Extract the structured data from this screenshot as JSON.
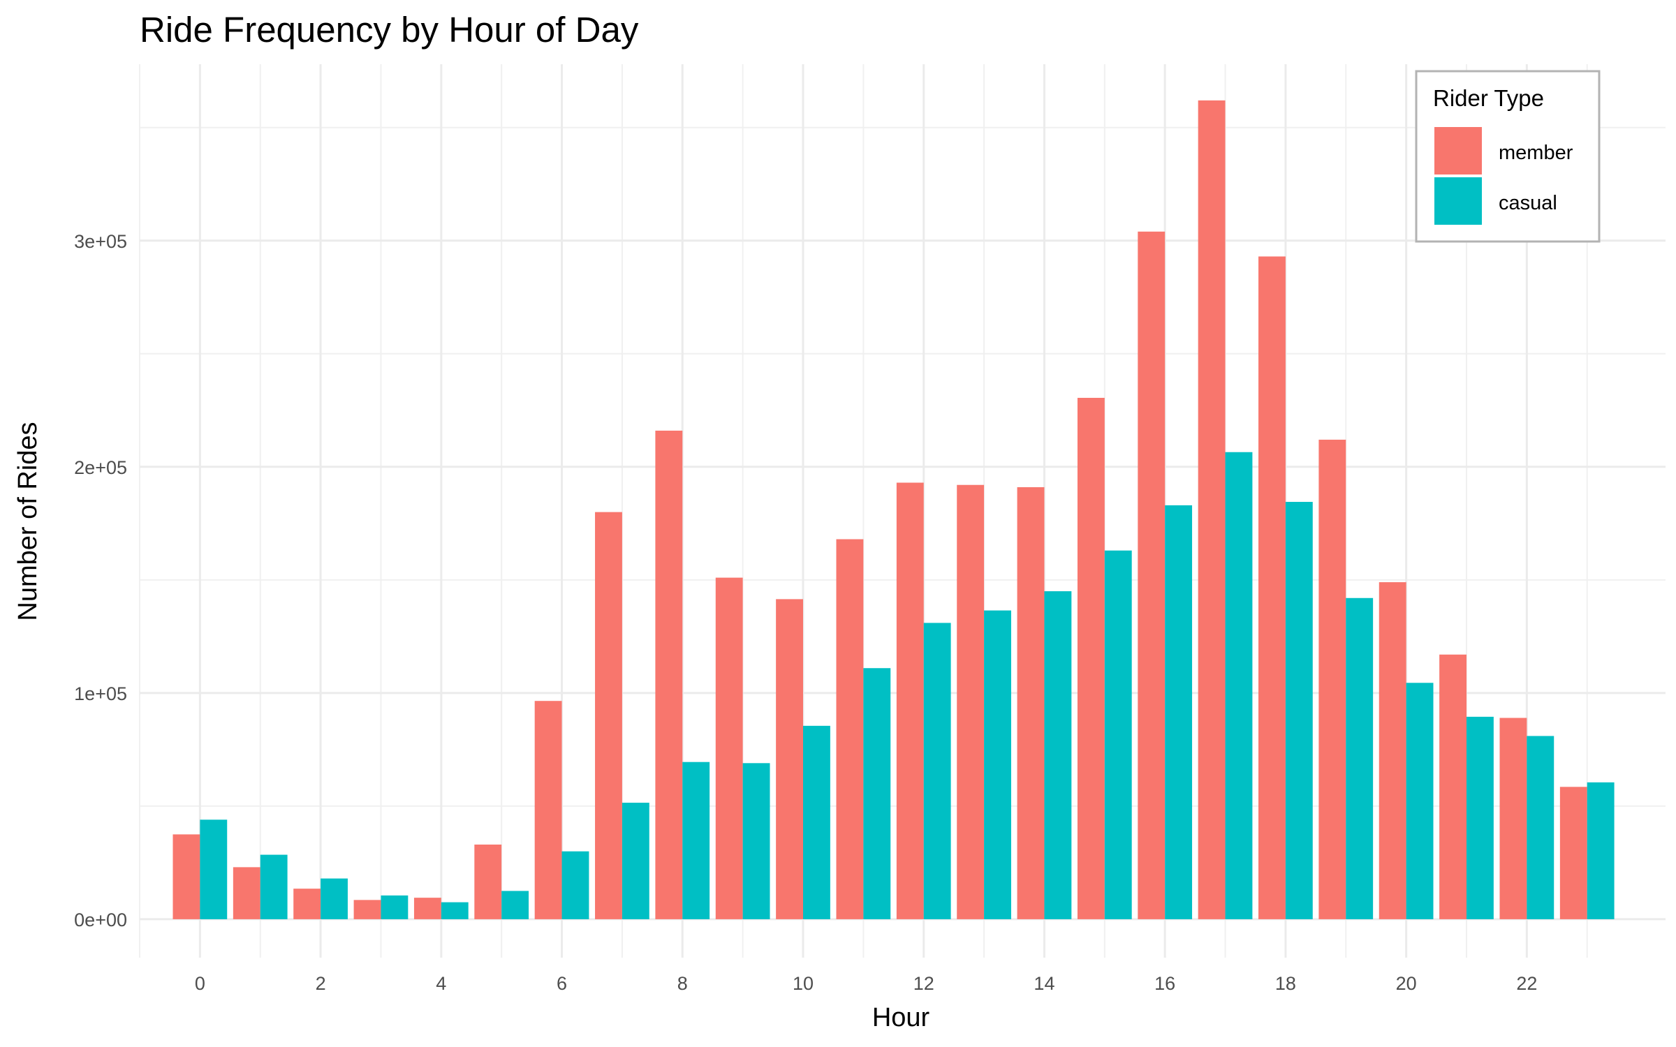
{
  "chart_data": {
    "type": "bar",
    "title": "Ride Frequency by Hour of Day",
    "xlabel": "Hour",
    "ylabel": "Number of Rides",
    "categories": [
      0,
      1,
      2,
      3,
      4,
      5,
      6,
      7,
      8,
      9,
      10,
      11,
      12,
      13,
      14,
      15,
      16,
      17,
      18,
      19,
      20,
      21,
      22,
      23
    ],
    "x_tick_labels": [
      "0",
      "2",
      "4",
      "6",
      "8",
      "10",
      "12",
      "14",
      "16",
      "18",
      "20",
      "22"
    ],
    "y_ticks": [
      0,
      100000,
      200000,
      300000
    ],
    "y_tick_labels": [
      "0e+00",
      "1e+05",
      "2e+05",
      "3e+05"
    ],
    "ylim": [
      -17000,
      378000
    ],
    "xlim": [
      -1,
      24.3
    ],
    "grid": true,
    "legend": {
      "title": "Rider Type",
      "position": "top-right",
      "entries": [
        "member",
        "casual"
      ]
    },
    "series": [
      {
        "name": "member",
        "color": "#F8766D",
        "values": [
          37500,
          23000,
          13500,
          8500,
          9500,
          33000,
          96500,
          180000,
          216000,
          151000,
          141500,
          168000,
          193000,
          192000,
          191000,
          230500,
          304000,
          362000,
          293000,
          212000,
          149000,
          117000,
          89000,
          58500
        ]
      },
      {
        "name": "casual",
        "color": "#00BFC4",
        "values": [
          44000,
          28500,
          18000,
          10500,
          7500,
          12500,
          30000,
          51500,
          69500,
          69000,
          85500,
          111000,
          131000,
          136500,
          145000,
          163000,
          183000,
          206500,
          184500,
          142000,
          104500,
          89500,
          81000,
          60500
        ]
      }
    ]
  }
}
